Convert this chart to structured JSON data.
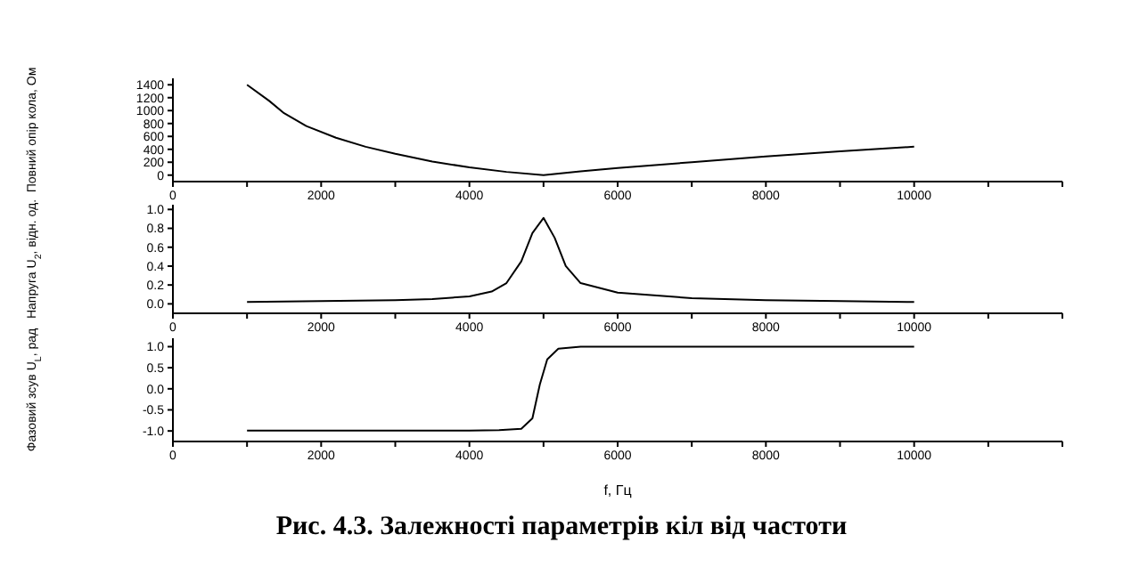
{
  "chart_data": [
    {
      "type": "line",
      "ylabel": "Повний опір кола, Ом",
      "x": [
        1000,
        1300,
        1500,
        1800,
        2200,
        2600,
        3000,
        3500,
        4000,
        4500,
        5000,
        5500,
        6000,
        7000,
        8000,
        9000,
        10000
      ],
      "series": [
        {
          "color": "#000000",
          "values": [
            1400,
            1150,
            960,
            760,
            580,
            440,
            330,
            210,
            120,
            50,
            0,
            60,
            110,
            200,
            290,
            370,
            440
          ]
        }
      ],
      "xlim": [
        0,
        12000
      ],
      "xticks": [
        0,
        {
          "value": 1000,
          "label": null
        },
        2000,
        {
          "value": 3000,
          "label": null
        },
        4000,
        {
          "value": 5000,
          "label": null
        },
        6000,
        {
          "value": 7000,
          "label": null
        },
        8000,
        {
          "value": 9000,
          "label": null
        },
        10000,
        {
          "value": 11000,
          "label": null
        },
        {
          "value": 12000,
          "label": null
        }
      ],
      "ylim": [
        -100,
        1500
      ],
      "yticks": [
        0,
        200,
        400,
        600,
        800,
        1000,
        1200,
        1400
      ],
      "marker": "none"
    },
    {
      "type": "line",
      "ylabel": "Напруга U$_{2}$, відн. од.",
      "x": [
        1000,
        2000,
        3000,
        3500,
        4000,
        4300,
        4500,
        4700,
        4850,
        5000,
        5150,
        5300,
        5500,
        6000,
        7000,
        8000,
        9000,
        10000
      ],
      "series": [
        {
          "color": "#000000",
          "values": [
            0.02,
            0.03,
            0.04,
            0.05,
            0.08,
            0.13,
            0.22,
            0.45,
            0.75,
            0.91,
            0.7,
            0.4,
            0.22,
            0.12,
            0.06,
            0.04,
            0.03,
            0.02
          ]
        }
      ],
      "xlim": [
        0,
        12000
      ],
      "xticks": [
        0,
        {
          "value": 1000,
          "label": null
        },
        2000,
        {
          "value": 3000,
          "label": null
        },
        4000,
        {
          "value": 5000,
          "label": null
        },
        6000,
        {
          "value": 7000,
          "label": null
        },
        8000,
        {
          "value": 9000,
          "label": null
        },
        10000,
        {
          "value": 11000,
          "label": null
        },
        {
          "value": 12000,
          "label": null
        }
      ],
      "ylim": [
        -0.1,
        1.05
      ],
      "yticks": [
        {
          "value": 0,
          "label": "0.0"
        },
        0.2,
        0.4,
        0.6,
        0.8,
        {
          "value": 1,
          "label": "1.0"
        }
      ],
      "marker": "none"
    },
    {
      "type": "line",
      "xlabel": "f, Гц",
      "ylabel": "Фазовий зсув U$_{L}$, рад",
      "x": [
        1000,
        4000,
        4400,
        4700,
        4850,
        4950,
        5050,
        5200,
        5500,
        10000
      ],
      "series": [
        {
          "color": "#000000",
          "values": [
            -0.99,
            -0.99,
            -0.98,
            -0.95,
            -0.7,
            0.1,
            0.7,
            0.95,
            1.0,
            1.0
          ]
        }
      ],
      "xlim": [
        0,
        12000
      ],
      "xticks": [
        0,
        {
          "value": 1000,
          "label": null
        },
        2000,
        {
          "value": 3000,
          "label": null
        },
        4000,
        {
          "value": 5000,
          "label": null
        },
        6000,
        {
          "value": 7000,
          "label": null
        },
        8000,
        {
          "value": 9000,
          "label": null
        },
        10000,
        {
          "value": 11000,
          "label": null
        },
        {
          "value": 12000,
          "label": null
        }
      ],
      "ylim": [
        -1.25,
        1.2
      ],
      "yticks": [
        {
          "value": -1,
          "label": "-1.0"
        },
        -0.5,
        {
          "value": 0,
          "label": "0.0"
        },
        0.5,
        {
          "value": 1,
          "label": "1.0"
        }
      ],
      "marker": "none",
      "annotations": [
        "Рис. 4.3. Залежності параметрів кіл від частоти"
      ]
    }
  ]
}
